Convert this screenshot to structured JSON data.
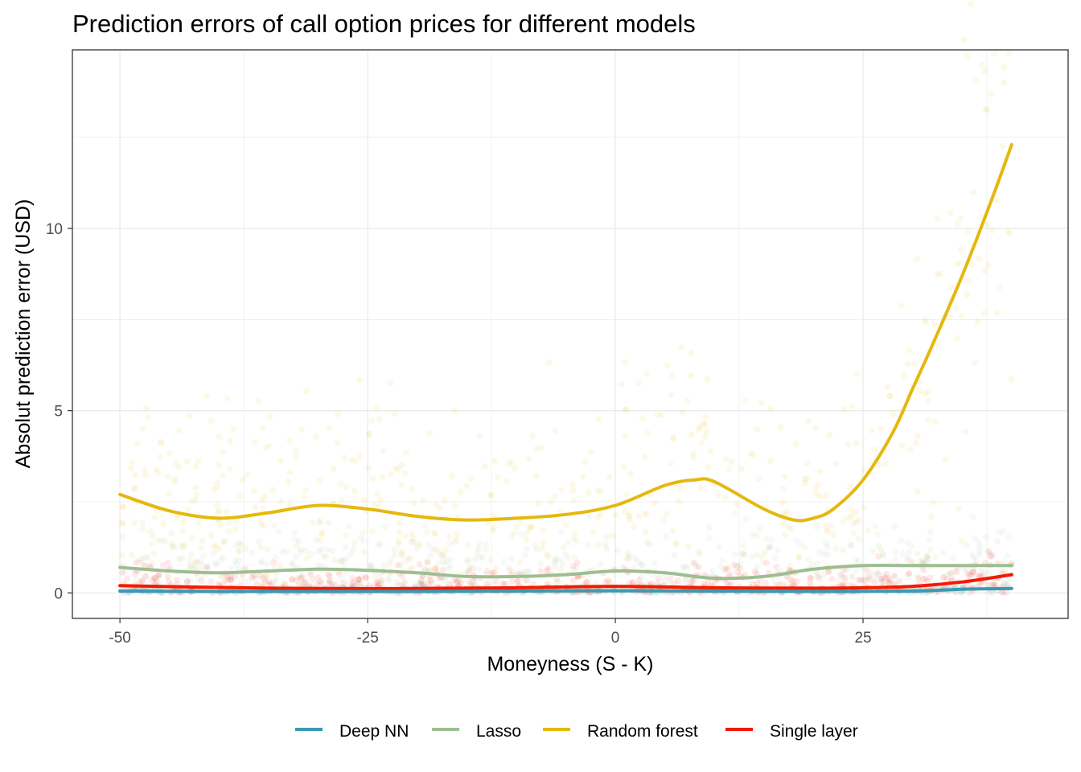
{
  "chart_data": {
    "type": "line",
    "title": "Prediction errors of call option prices for different models",
    "xlabel": "Moneyness (S - K)",
    "ylabel": "Absolut prediction error (USD)",
    "xlim": [
      -54.8,
      45.7
    ],
    "ylim": [
      -0.7,
      14.9
    ],
    "x_ticks": [
      -50,
      -25,
      0,
      25
    ],
    "x_tick_labels": [
      "-50",
      "-25",
      "0",
      "25"
    ],
    "y_ticks": [
      0,
      5,
      10
    ],
    "y_tick_labels": [
      "0",
      "5",
      "10"
    ],
    "grid": true,
    "legend_position": "bottom",
    "series": [
      {
        "name": "Deep NN",
        "color": "#3B9AB2",
        "x": [
          -50,
          -40,
          -30,
          -20,
          -10,
          0,
          10,
          20,
          30,
          35,
          40
        ],
        "y": [
          0.05,
          0.04,
          0.04,
          0.04,
          0.05,
          0.06,
          0.05,
          0.04,
          0.05,
          0.1,
          0.12
        ],
        "scatter_spread": 0.15
      },
      {
        "name": "Lasso",
        "color": "#9EBE91",
        "x": [
          -50,
          -45,
          -40,
          -35,
          -30,
          -25,
          -20,
          -15,
          -10,
          -5,
          0,
          5,
          10,
          15,
          20,
          25,
          30,
          35,
          40
        ],
        "y": [
          0.7,
          0.6,
          0.55,
          0.6,
          0.65,
          0.62,
          0.55,
          0.45,
          0.45,
          0.5,
          0.6,
          0.55,
          0.4,
          0.45,
          0.65,
          0.75,
          0.75,
          0.75,
          0.75
        ],
        "scatter_spread": 1.2
      },
      {
        "name": "Random forest",
        "color": "#E4B80E",
        "x": [
          -50,
          -45,
          -40,
          -35,
          -30,
          -25,
          -20,
          -15,
          -10,
          -5,
          0,
          5,
          8,
          10,
          15,
          18,
          20,
          22,
          25,
          28,
          30,
          32,
          35,
          38,
          40
        ],
        "y": [
          2.7,
          2.25,
          2.05,
          2.2,
          2.4,
          2.3,
          2.1,
          2.0,
          2.05,
          2.15,
          2.4,
          2.95,
          3.1,
          3.05,
          2.3,
          2.0,
          2.05,
          2.3,
          3.1,
          4.4,
          5.6,
          6.8,
          8.7,
          10.8,
          12.3
        ],
        "scatter_spread": 3.2
      },
      {
        "name": "Single layer",
        "color": "#F21A00",
        "x": [
          -50,
          -40,
          -30,
          -20,
          -10,
          0,
          10,
          20,
          25,
          30,
          35,
          40
        ],
        "y": [
          0.2,
          0.15,
          0.12,
          0.12,
          0.14,
          0.18,
          0.14,
          0.13,
          0.14,
          0.18,
          0.3,
          0.5
        ],
        "scatter_spread": 0.6
      }
    ]
  }
}
